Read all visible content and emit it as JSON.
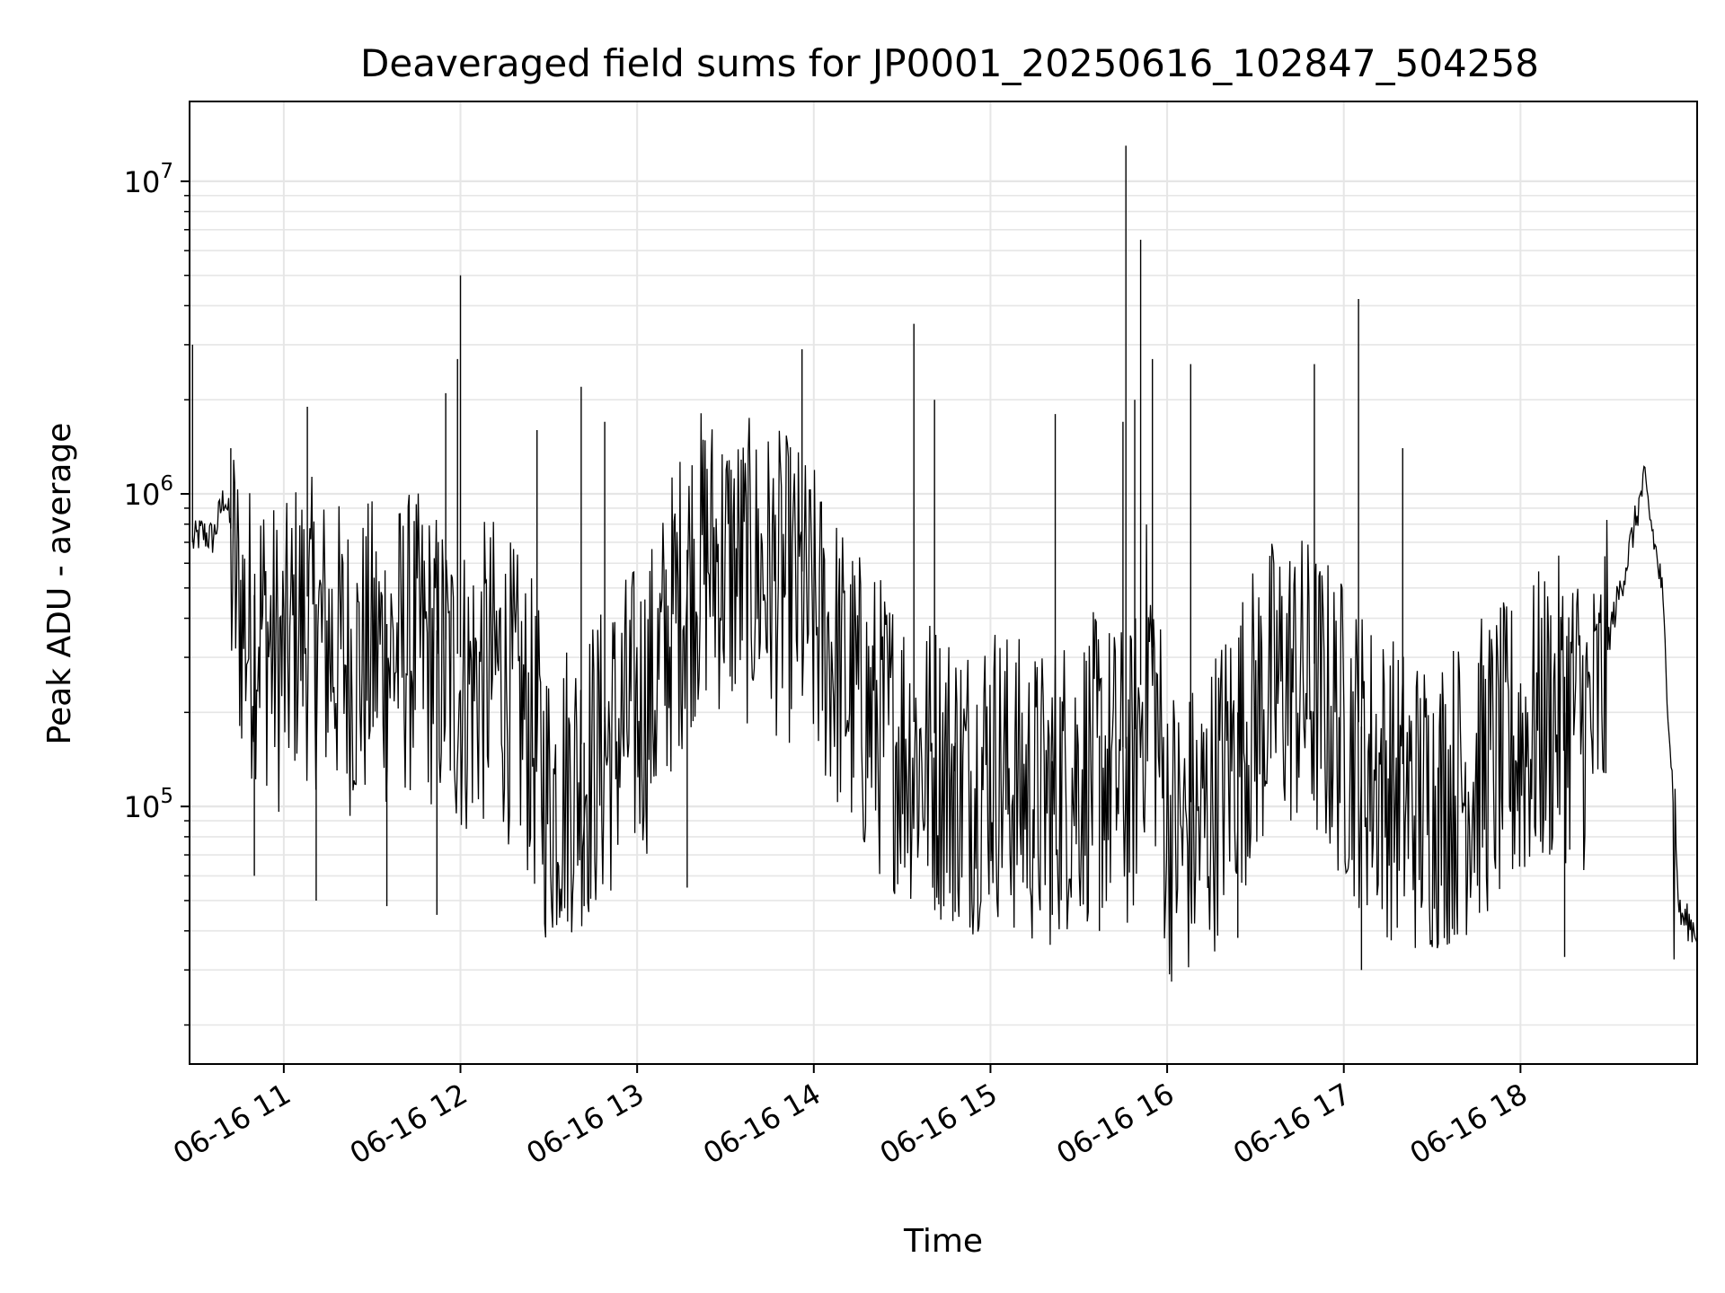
{
  "chart_data": {
    "type": "line",
    "title": "Deaveraged field sums for JP0001_20250616_102847_504258",
    "xlabel": "Time",
    "ylabel": "Peak ADU - average",
    "y_scale": "log",
    "ylim": [
      15000,
      18000000
    ],
    "xlim": [
      "2025-06-16 10:28",
      "2025-06-16 19:00"
    ],
    "x_ticks": [
      "06-16 11",
      "06-16 12",
      "06-16 13",
      "06-16 14",
      "06-16 15",
      "06-16 16",
      "06-16 17",
      "06-16 18"
    ],
    "y_ticks": [
      {
        "value": 100000,
        "base": "10",
        "exp": "5"
      },
      {
        "value": 1000000,
        "base": "10",
        "exp": "6"
      },
      {
        "value": 10000000,
        "base": "10",
        "exp": "7"
      }
    ],
    "grid": true,
    "line_color": "#000000",
    "series": [
      {
        "x": [
          "10:29",
          "10:32",
          "10:36",
          "10:40",
          "10:44",
          "10:48",
          "10:52",
          "10:56",
          "11:00",
          "11:05",
          "11:10",
          "11:15",
          "11:20",
          "11:25",
          "11:30",
          "11:36",
          "11:42",
          "11:48",
          "11:54",
          "12:00",
          "12:06",
          "12:12",
          "12:18",
          "12:24",
          "12:30",
          "12:36",
          "12:42",
          "12:48",
          "12:54",
          "13:00",
          "13:06",
          "13:12",
          "13:18",
          "13:24",
          "13:30",
          "13:36",
          "13:42",
          "13:48",
          "13:54",
          "14:00",
          "14:06",
          "14:12",
          "14:18",
          "14:24",
          "14:30",
          "14:36",
          "14:42",
          "14:48",
          "14:54",
          "15:00",
          "15:06",
          "15:12",
          "15:18",
          "15:24",
          "15:30",
          "15:36",
          "15:42",
          "15:48",
          "15:54",
          "16:00",
          "16:06",
          "16:12",
          "16:18",
          "16:24",
          "16:30",
          "16:36",
          "16:42",
          "16:48",
          "16:54",
          "17:00",
          "17:06",
          "17:12",
          "17:18",
          "17:24",
          "17:30",
          "17:36",
          "17:42",
          "17:48",
          "17:54",
          "18:00",
          "18:06",
          "18:12",
          "18:18",
          "18:24",
          "18:30",
          "18:36",
          "18:42",
          "18:48",
          "18:54",
          "19:00"
        ],
        "y": [
          700000,
          750000,
          720000,
          1000000,
          600000,
          450000,
          500000,
          400000,
          350000,
          500000,
          450000,
          420000,
          380000,
          350000,
          400000,
          380000,
          420000,
          400000,
          350000,
          300000,
          320000,
          350000,
          280000,
          220000,
          130000,
          150000,
          160000,
          180000,
          220000,
          250000,
          300000,
          500000,
          700000,
          800000,
          750000,
          700000,
          700000,
          650000,
          600000,
          500000,
          400000,
          300000,
          250000,
          220000,
          200000,
          180000,
          170000,
          160000,
          150000,
          180000,
          150000,
          140000,
          130000,
          150000,
          160000,
          170000,
          160000,
          150000,
          400000,
          110000,
          100000,
          110000,
          150000,
          200000,
          250000,
          300000,
          320000,
          300000,
          260000,
          220000,
          180000,
          160000,
          140000,
          130000,
          130000,
          140000,
          150000,
          170000,
          180000,
          200000,
          230000,
          250000,
          270000,
          220000,
          350000,
          600000,
          1100000,
          500000,
          45000,
          40000
        ]
      }
    ],
    "spikes": [
      {
        "x": "10:29",
        "y": 3000000
      },
      {
        "x": "10:42",
        "y": 1400000
      },
      {
        "x": "11:08",
        "y": 1900000
      },
      {
        "x": "11:55",
        "y": 2100000
      },
      {
        "x": "11:59",
        "y": 2700000
      },
      {
        "x": "12:00",
        "y": 5000000
      },
      {
        "x": "12:26",
        "y": 1600000
      },
      {
        "x": "12:41",
        "y": 2200000
      },
      {
        "x": "12:49",
        "y": 1700000
      },
      {
        "x": "13:56",
        "y": 2900000
      },
      {
        "x": "14:34",
        "y": 3500000
      },
      {
        "x": "14:41",
        "y": 2000000
      },
      {
        "x": "15:22",
        "y": 1800000
      },
      {
        "x": "15:45",
        "y": 1700000
      },
      {
        "x": "15:46",
        "y": 13000000
      },
      {
        "x": "15:49",
        "y": 2000000
      },
      {
        "x": "15:51",
        "y": 6500000
      },
      {
        "x": "15:55",
        "y": 2700000
      },
      {
        "x": "16:08",
        "y": 2600000
      },
      {
        "x": "16:50",
        "y": 2600000
      },
      {
        "x": "17:05",
        "y": 4200000
      },
      {
        "x": "17:20",
        "y": 1400000
      }
    ],
    "dips": [
      {
        "x": "10:50",
        "y": 60000
      },
      {
        "x": "11:11",
        "y": 50000
      },
      {
        "x": "11:35",
        "y": 48000
      },
      {
        "x": "11:52",
        "y": 45000
      },
      {
        "x": "12:42",
        "y": 48000
      },
      {
        "x": "13:17",
        "y": 55000
      },
      {
        "x": "14:48",
        "y": 46000
      },
      {
        "x": "15:21",
        "y": 45000
      },
      {
        "x": "15:37",
        "y": 40000
      },
      {
        "x": "16:24",
        "y": 38000
      },
      {
        "x": "17:06",
        "y": 30000
      },
      {
        "x": "17:32",
        "y": 37000
      },
      {
        "x": "18:15",
        "y": 33000
      }
    ]
  }
}
